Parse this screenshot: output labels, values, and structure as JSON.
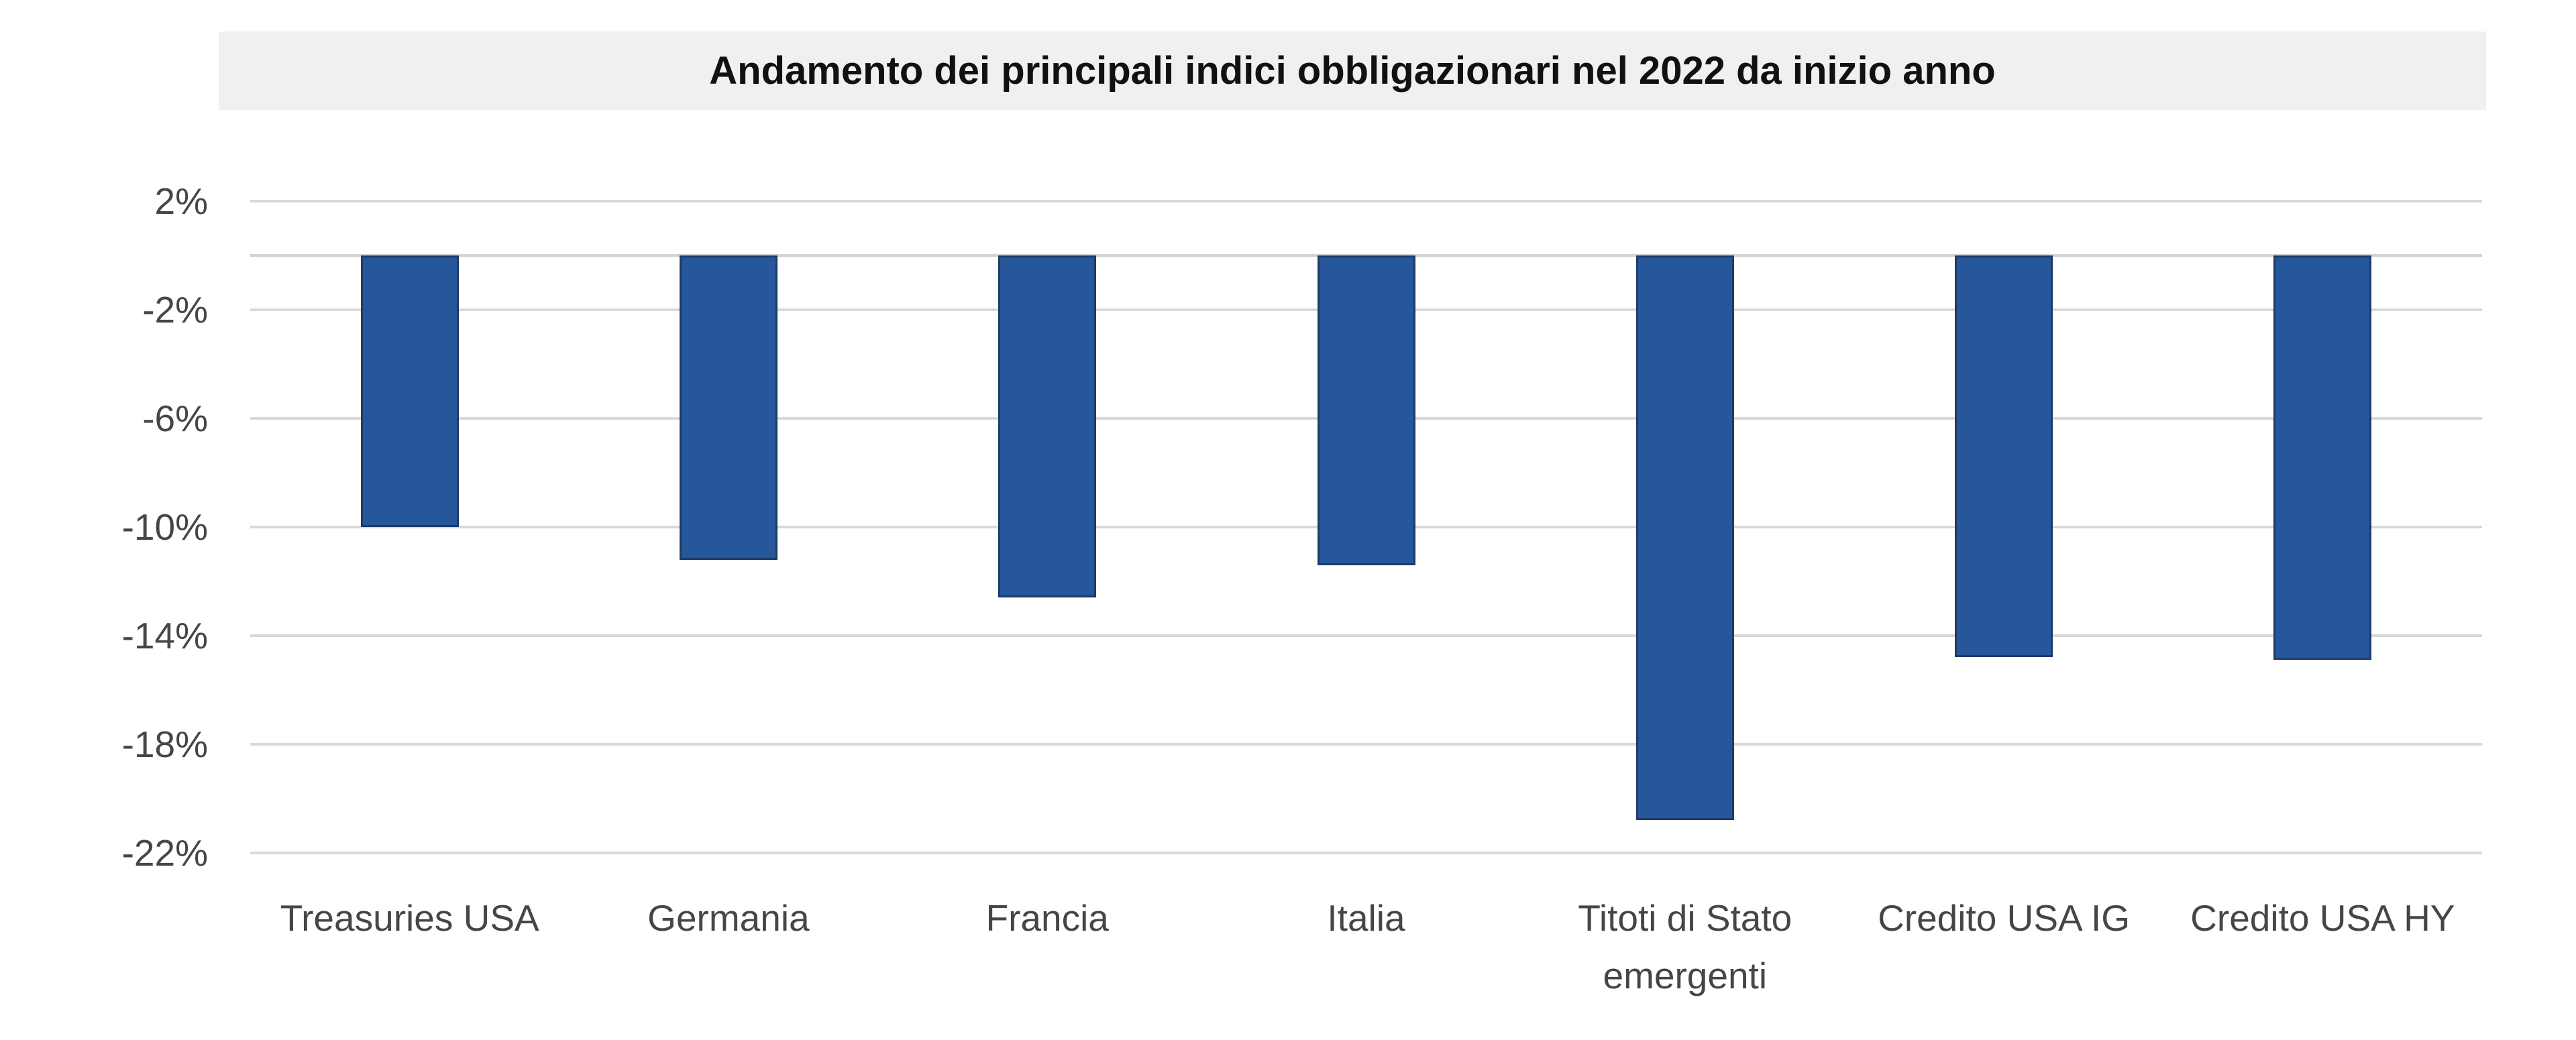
{
  "chart_data": {
    "type": "bar",
    "title": "Andamento dei principali indici obbligazionari nel 2022 da inizio anno",
    "categories": [
      "Treasuries USA",
      "Germania",
      "Francia",
      "Italia",
      "Titoti di Stato\nemergenti",
      "Credito USA IG",
      "Credito USA HY"
    ],
    "values": [
      -10.0,
      -11.2,
      -12.6,
      -11.4,
      -20.8,
      -14.8,
      -14.9
    ],
    "unit": "%",
    "xlabel": "",
    "ylabel": "",
    "ylim": [
      -22,
      2
    ],
    "ytick_labels": [
      "2%",
      "-2%",
      "-6%",
      "-10%",
      "-14%",
      "-18%",
      "-22%"
    ],
    "ytick_values": [
      2,
      -2,
      -6,
      -10,
      -14,
      -18,
      -22
    ],
    "zero_baseline": 0,
    "grid": true,
    "legend_position": "none",
    "colors": {
      "bar_fill": "#27579B",
      "bar_border": "#1E3A68",
      "gridline": "#D9D9D9",
      "zero_line": "#D3D3D3",
      "title_background": "#F0F0F0",
      "title_text": "#111111",
      "axis_text": "#464646",
      "background": "#FFFFFF"
    }
  }
}
